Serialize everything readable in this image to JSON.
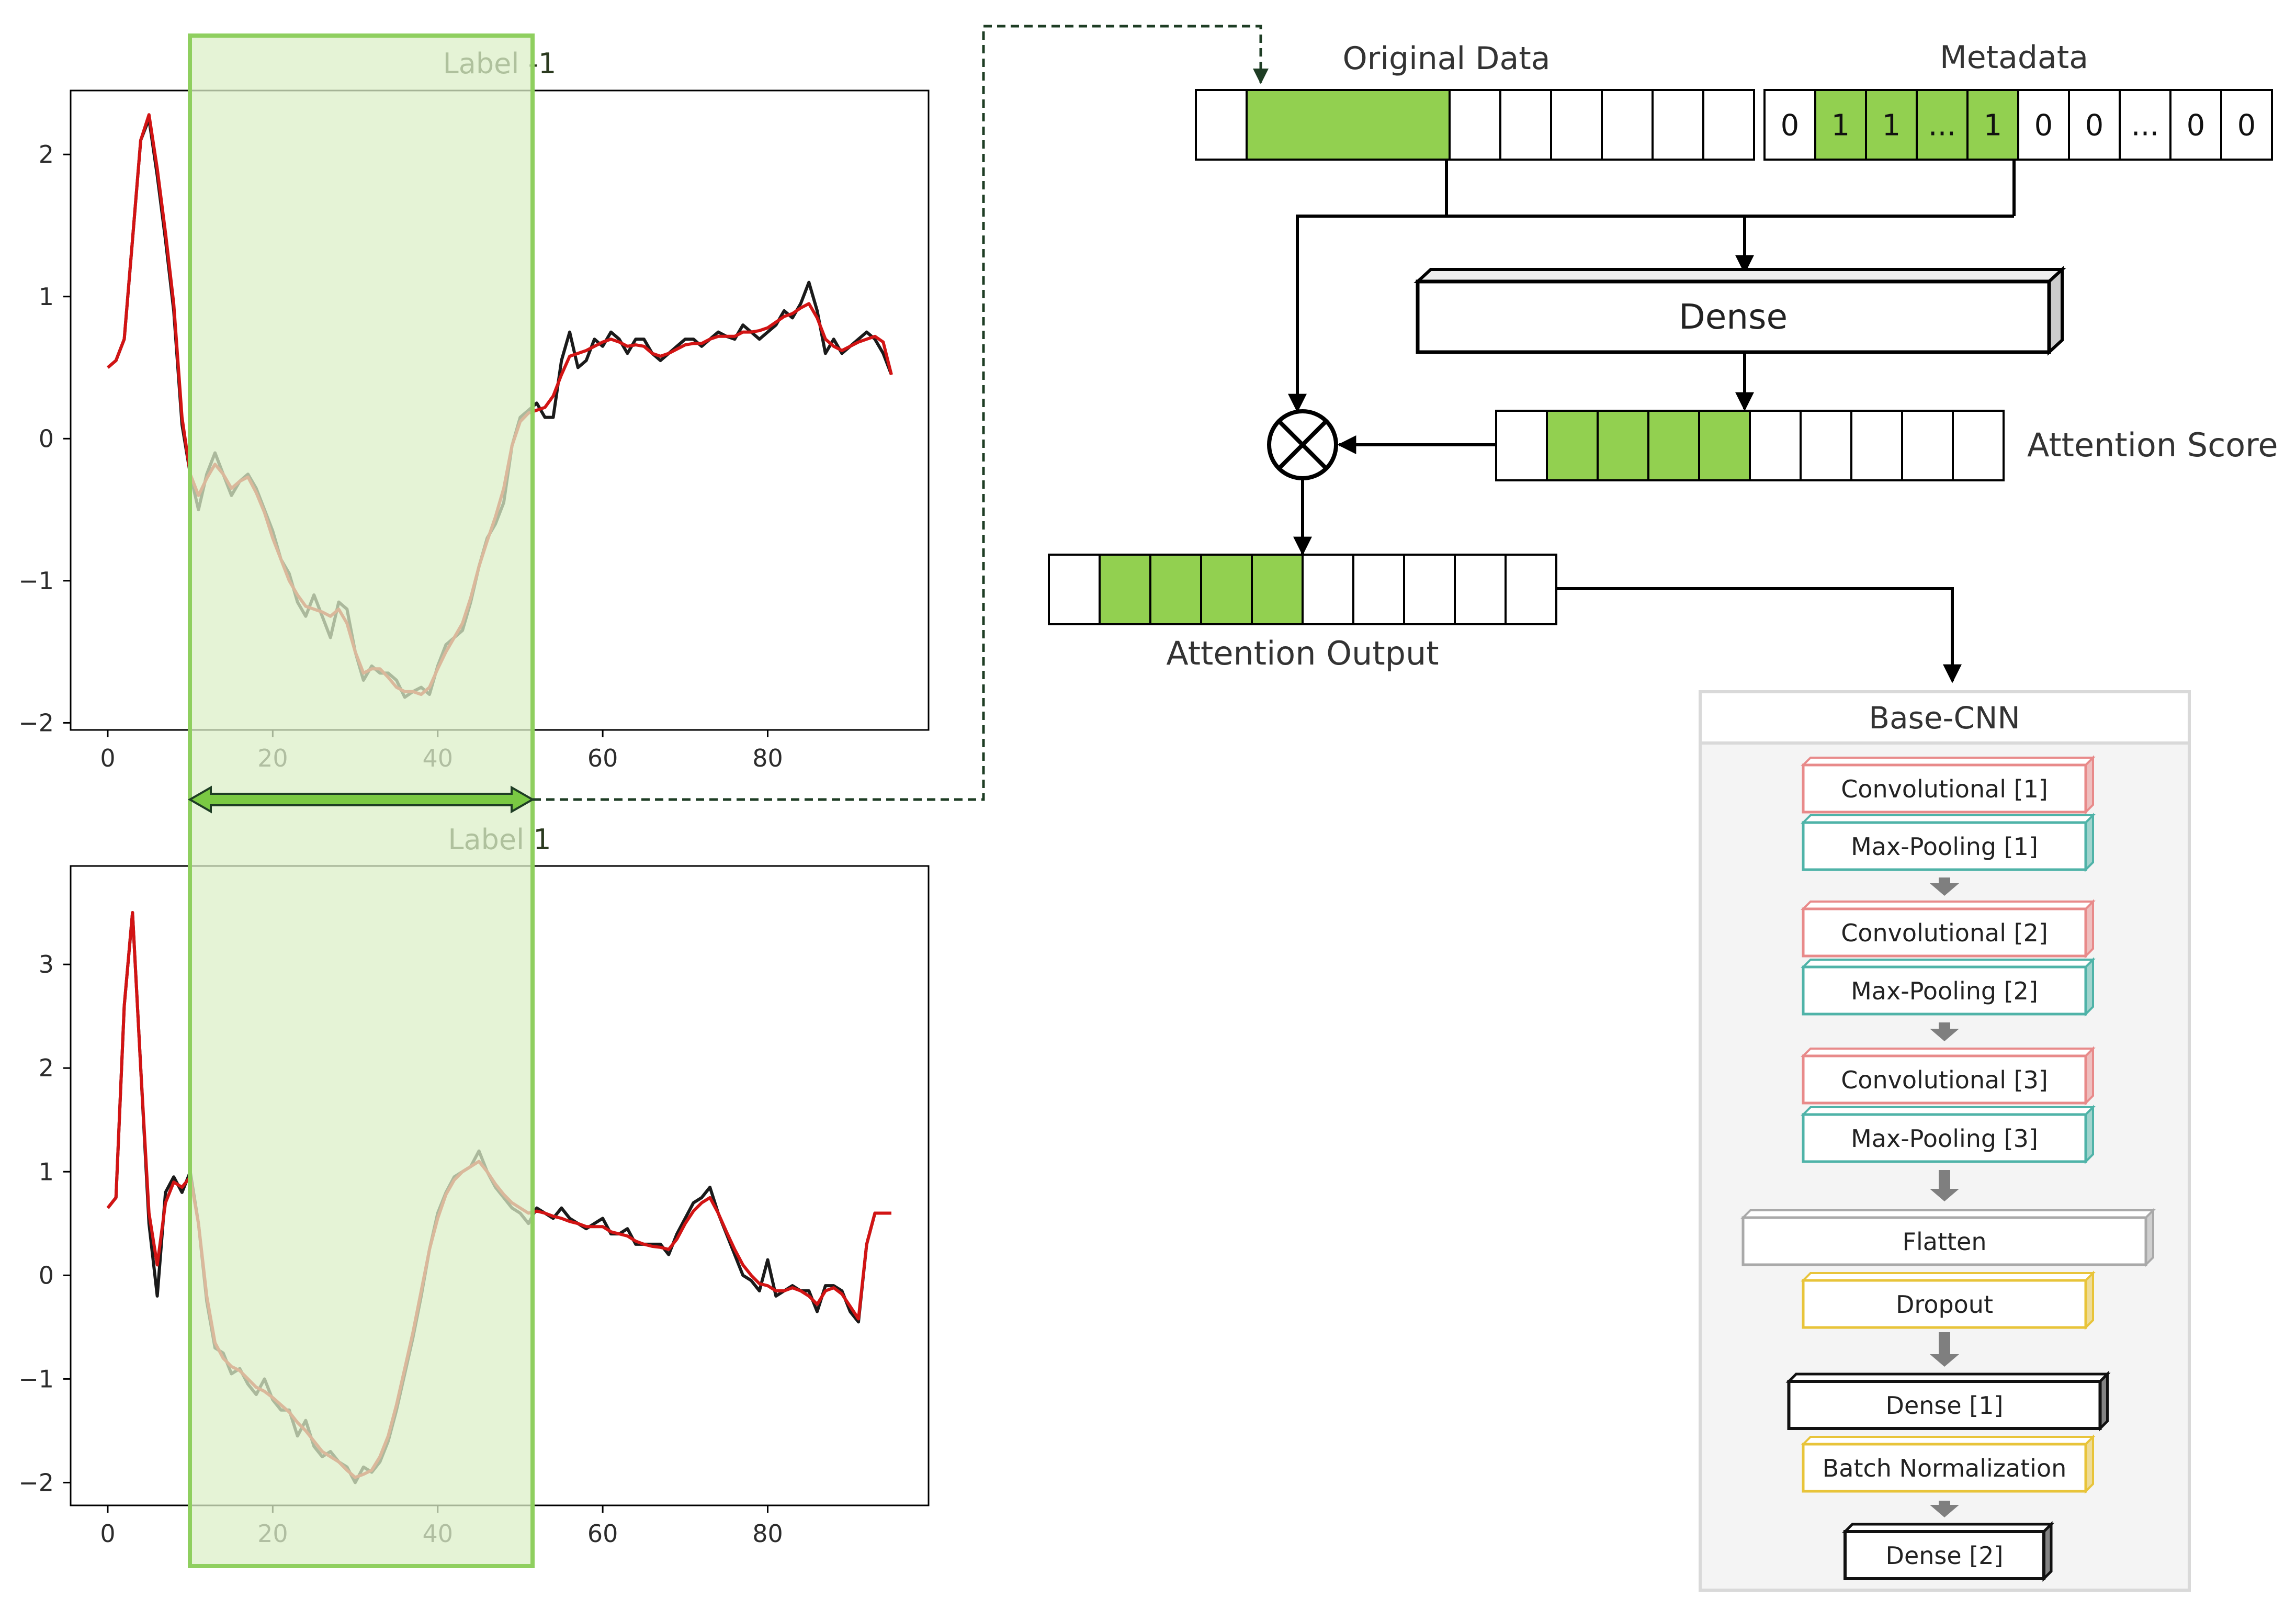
{
  "colors": {
    "green_fill": "#92d050",
    "band_fill": "#dcefc8",
    "band_stroke": "#8fcf5f",
    "black_series": "#1a1a1a",
    "red_series": "#d21414",
    "red_box": "#e88a8a",
    "teal_box": "#4fb3a8",
    "gray_box": "#a9a9a9",
    "yellow_box": "#e8c43a",
    "dashed_link": "#1e3d24",
    "axis_label": "#2c2c2c"
  },
  "plots": {
    "top": {
      "title": "Label -1",
      "xticks": [
        "0",
        "20",
        "40",
        "60",
        "80"
      ],
      "yticks": [
        "2",
        "1",
        "0",
        "−1",
        "−2"
      ]
    },
    "bottom": {
      "title": "Label 1",
      "xticks": [
        "0",
        "20",
        "40",
        "60",
        "80"
      ],
      "yticks": [
        "3",
        "2",
        "1",
        "0",
        "−1",
        "−2"
      ]
    }
  },
  "chart_data": [
    {
      "type": "line",
      "title": "Label -1",
      "xlim": [
        -4.5,
        99.5
      ],
      "ylim": [
        -2.05,
        2.45
      ],
      "highlight_x": [
        10,
        51.5
      ],
      "series": [
        {
          "name": "raw",
          "color": "#1a1a1a",
          "x": [
            0,
            1,
            2,
            3,
            4,
            5,
            6,
            7,
            8,
            9,
            10,
            11,
            12,
            13,
            14,
            15,
            16,
            17,
            18,
            19,
            20,
            21,
            22,
            23,
            24,
            25,
            26,
            27,
            28,
            29,
            30,
            31,
            32,
            33,
            34,
            35,
            36,
            37,
            38,
            39,
            40,
            41,
            42,
            43,
            44,
            45,
            46,
            47,
            48,
            49,
            50,
            51,
            52,
            53,
            54,
            55,
            56,
            57,
            58,
            59,
            60,
            61,
            62,
            63,
            64,
            65,
            66,
            67,
            68,
            69,
            70,
            71,
            72,
            73,
            74,
            75,
            76,
            77,
            78,
            79,
            80,
            81,
            82,
            83,
            84,
            85,
            86,
            87,
            88,
            89,
            90,
            91,
            92,
            93,
            94,
            95
          ],
          "y": [
            0.5,
            0.55,
            0.7,
            1.4,
            2.1,
            2.25,
            1.85,
            1.4,
            0.9,
            0.1,
            -0.25,
            -0.5,
            -0.25,
            -0.1,
            -0.25,
            -0.4,
            -0.3,
            -0.25,
            -0.35,
            -0.5,
            -0.65,
            -0.85,
            -0.95,
            -1.15,
            -1.25,
            -1.1,
            -1.25,
            -1.4,
            -1.15,
            -1.2,
            -1.5,
            -1.7,
            -1.6,
            -1.65,
            -1.65,
            -1.7,
            -1.82,
            -1.78,
            -1.75,
            -1.8,
            -1.6,
            -1.45,
            -1.4,
            -1.35,
            -1.15,
            -0.9,
            -0.7,
            -0.6,
            -0.45,
            -0.05,
            0.15,
            0.2,
            0.25,
            0.15,
            0.15,
            0.55,
            0.75,
            0.5,
            0.55,
            0.7,
            0.65,
            0.75,
            0.7,
            0.6,
            0.7,
            0.7,
            0.6,
            0.55,
            0.6,
            0.65,
            0.7,
            0.7,
            0.65,
            0.7,
            0.75,
            0.72,
            0.7,
            0.8,
            0.75,
            0.7,
            0.75,
            0.8,
            0.9,
            0.85,
            0.95,
            1.1,
            0.9,
            0.6,
            0.7,
            0.6,
            0.65,
            0.7,
            0.75,
            0.7,
            0.6,
            0.45
          ]
        },
        {
          "name": "smoothed",
          "color": "#d21414",
          "x": [
            0,
            1,
            2,
            3,
            4,
            5,
            6,
            7,
            8,
            9,
            10,
            11,
            12,
            13,
            14,
            15,
            16,
            17,
            18,
            19,
            20,
            21,
            22,
            23,
            24,
            25,
            26,
            27,
            28,
            29,
            30,
            31,
            32,
            33,
            34,
            35,
            36,
            37,
            38,
            39,
            40,
            41,
            42,
            43,
            44,
            45,
            46,
            47,
            48,
            49,
            50,
            51,
            52,
            53,
            54,
            55,
            56,
            57,
            58,
            59,
            60,
            61,
            62,
            63,
            64,
            65,
            66,
            67,
            68,
            69,
            70,
            71,
            72,
            73,
            74,
            75,
            76,
            77,
            78,
            79,
            80,
            81,
            82,
            83,
            84,
            85,
            86,
            87,
            88,
            89,
            90,
            91,
            92,
            93,
            94,
            95
          ],
          "y": [
            0.5,
            0.55,
            0.7,
            1.4,
            2.1,
            2.28,
            1.9,
            1.45,
            0.95,
            0.15,
            -0.25,
            -0.4,
            -0.28,
            -0.18,
            -0.25,
            -0.35,
            -0.3,
            -0.27,
            -0.38,
            -0.52,
            -0.7,
            -0.85,
            -1.0,
            -1.1,
            -1.18,
            -1.2,
            -1.22,
            -1.25,
            -1.2,
            -1.3,
            -1.5,
            -1.65,
            -1.62,
            -1.62,
            -1.68,
            -1.75,
            -1.78,
            -1.78,
            -1.8,
            -1.75,
            -1.62,
            -1.5,
            -1.4,
            -1.3,
            -1.12,
            -0.9,
            -0.72,
            -0.55,
            -0.35,
            -0.05,
            0.12,
            0.18,
            0.2,
            0.22,
            0.3,
            0.45,
            0.58,
            0.6,
            0.62,
            0.65,
            0.68,
            0.7,
            0.68,
            0.65,
            0.66,
            0.65,
            0.6,
            0.58,
            0.6,
            0.63,
            0.66,
            0.67,
            0.67,
            0.7,
            0.72,
            0.72,
            0.72,
            0.75,
            0.75,
            0.76,
            0.78,
            0.82,
            0.86,
            0.88,
            0.92,
            0.95,
            0.85,
            0.7,
            0.65,
            0.62,
            0.65,
            0.68,
            0.7,
            0.72,
            0.68,
            0.45
          ]
        }
      ]
    },
    {
      "type": "line",
      "title": "Label 1",
      "xlim": [
        -4.5,
        99.5
      ],
      "ylim": [
        -2.22,
        3.95
      ],
      "highlight_x": [
        10,
        51.5
      ],
      "series": [
        {
          "name": "raw",
          "color": "#1a1a1a",
          "x": [
            0,
            1,
            2,
            3,
            4,
            5,
            6,
            7,
            8,
            9,
            10,
            11,
            12,
            13,
            14,
            15,
            16,
            17,
            18,
            19,
            20,
            21,
            22,
            23,
            24,
            25,
            26,
            27,
            28,
            29,
            30,
            31,
            32,
            33,
            34,
            35,
            36,
            37,
            38,
            39,
            40,
            41,
            42,
            43,
            44,
            45,
            46,
            47,
            48,
            49,
            50,
            51,
            52,
            53,
            54,
            55,
            56,
            57,
            58,
            59,
            60,
            61,
            62,
            63,
            64,
            65,
            66,
            67,
            68,
            69,
            70,
            71,
            72,
            73,
            74,
            75,
            76,
            77,
            78,
            79,
            80,
            81,
            82,
            83,
            84,
            85,
            86,
            87,
            88,
            89,
            90,
            91,
            92,
            93,
            94,
            95
          ],
          "y": [
            0.65,
            0.75,
            2.6,
            3.5,
            2.0,
            0.5,
            -0.2,
            0.8,
            0.95,
            0.8,
            1.0,
            0.5,
            -0.25,
            -0.7,
            -0.75,
            -0.95,
            -0.9,
            -1.05,
            -1.15,
            -1.0,
            -1.2,
            -1.3,
            -1.3,
            -1.55,
            -1.4,
            -1.65,
            -1.75,
            -1.7,
            -1.8,
            -1.85,
            -2.0,
            -1.85,
            -1.9,
            -1.8,
            -1.6,
            -1.3,
            -0.95,
            -0.6,
            -0.2,
            0.25,
            0.6,
            0.8,
            0.95,
            1.0,
            1.05,
            1.2,
            1.0,
            0.85,
            0.75,
            0.65,
            0.6,
            0.5,
            0.65,
            0.6,
            0.55,
            0.65,
            0.55,
            0.5,
            0.45,
            0.5,
            0.55,
            0.4,
            0.4,
            0.45,
            0.3,
            0.3,
            0.3,
            0.3,
            0.2,
            0.4,
            0.55,
            0.7,
            0.75,
            0.85,
            0.6,
            0.4,
            0.2,
            0.0,
            -0.05,
            -0.15,
            0.15,
            -0.2,
            -0.15,
            -0.1,
            -0.15,
            -0.15,
            -0.35,
            -0.1,
            -0.1,
            -0.15,
            -0.35,
            -0.45,
            0.3,
            0.6,
            0.6,
            0.6
          ]
        },
        {
          "name": "smoothed",
          "color": "#d21414",
          "x": [
            0,
            1,
            2,
            3,
            4,
            5,
            6,
            7,
            8,
            9,
            10,
            11,
            12,
            13,
            14,
            15,
            16,
            17,
            18,
            19,
            20,
            21,
            22,
            23,
            24,
            25,
            26,
            27,
            28,
            29,
            30,
            31,
            32,
            33,
            34,
            35,
            36,
            37,
            38,
            39,
            40,
            41,
            42,
            43,
            44,
            45,
            46,
            47,
            48,
            49,
            50,
            51,
            52,
            53,
            54,
            55,
            56,
            57,
            58,
            59,
            60,
            61,
            62,
            63,
            64,
            65,
            66,
            67,
            68,
            69,
            70,
            71,
            72,
            73,
            74,
            75,
            76,
            77,
            78,
            79,
            80,
            81,
            82,
            83,
            84,
            85,
            86,
            87,
            88,
            89,
            90,
            91,
            92,
            93,
            94,
            95
          ],
          "y": [
            0.65,
            0.75,
            2.6,
            3.5,
            2.0,
            0.6,
            0.1,
            0.7,
            0.9,
            0.85,
            0.95,
            0.5,
            -0.2,
            -0.65,
            -0.8,
            -0.88,
            -0.92,
            -1.0,
            -1.08,
            -1.12,
            -1.18,
            -1.25,
            -1.32,
            -1.42,
            -1.5,
            -1.6,
            -1.7,
            -1.75,
            -1.8,
            -1.88,
            -1.95,
            -1.92,
            -1.88,
            -1.75,
            -1.55,
            -1.25,
            -0.9,
            -0.55,
            -0.15,
            0.25,
            0.55,
            0.78,
            0.92,
            1.0,
            1.05,
            1.1,
            1.0,
            0.88,
            0.78,
            0.7,
            0.65,
            0.6,
            0.62,
            0.6,
            0.57,
            0.55,
            0.52,
            0.5,
            0.47,
            0.47,
            0.47,
            0.42,
            0.4,
            0.38,
            0.33,
            0.3,
            0.28,
            0.27,
            0.25,
            0.35,
            0.5,
            0.62,
            0.7,
            0.75,
            0.6,
            0.42,
            0.25,
            0.1,
            0.0,
            -0.08,
            -0.1,
            -0.15,
            -0.15,
            -0.12,
            -0.15,
            -0.2,
            -0.28,
            -0.15,
            -0.12,
            -0.18,
            -0.3,
            -0.42,
            0.3,
            0.6,
            0.6,
            0.6
          ]
        }
      ]
    }
  ],
  "diagram": {
    "original_data": {
      "label": "Original Data",
      "cells": [
        "",
        "",
        "",
        "",
        "",
        "",
        "",
        ""
      ],
      "highlighted": [
        1
      ]
    },
    "metadata": {
      "label": "Metadata",
      "cells": [
        "0",
        "1",
        "1",
        "...",
        "1",
        "0",
        "0",
        "...",
        "0",
        "0"
      ],
      "highlighted": [
        1,
        2,
        3,
        4
      ]
    },
    "dense_label": "Dense",
    "attention_score": {
      "label": "Attention Score",
      "cells": [
        "",
        "",
        "",
        "",
        "",
        "",
        "",
        "",
        "",
        ""
      ],
      "highlighted": [
        1,
        2,
        3,
        4
      ]
    },
    "attention_output": {
      "label": "Attention Output",
      "cells": [
        "",
        "",
        "",
        "",
        "",
        "",
        "",
        "",
        "",
        ""
      ],
      "highlighted": [
        1,
        2,
        3,
        4
      ]
    },
    "base_cnn": {
      "title": "Base-CNN",
      "layers": [
        {
          "label": "Convolutional [1]",
          "kind": "conv"
        },
        {
          "label": "Max-Pooling [1]",
          "kind": "pool"
        },
        {
          "label": "Convolutional [2]",
          "kind": "conv"
        },
        {
          "label": "Max-Pooling [2]",
          "kind": "pool"
        },
        {
          "label": "Convolutional [3]",
          "kind": "conv"
        },
        {
          "label": "Max-Pooling [3]",
          "kind": "pool"
        },
        {
          "label": "Flatten",
          "kind": "flatten"
        },
        {
          "label": "Dropout",
          "kind": "norm"
        },
        {
          "label": "Dense [1]",
          "kind": "dense"
        },
        {
          "label": "Batch Normalization",
          "kind": "norm"
        },
        {
          "label": "Dense [2]",
          "kind": "dense"
        }
      ]
    }
  }
}
